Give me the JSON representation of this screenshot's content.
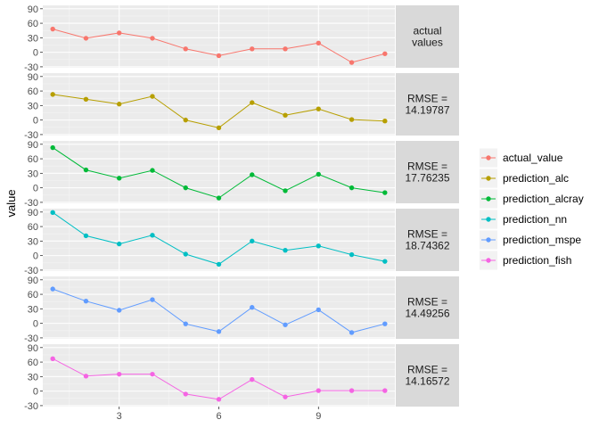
{
  "chart_data": {
    "type": "line",
    "ylabel": "value",
    "xlabel": "",
    "x": [
      1,
      2,
      3,
      4,
      5,
      6,
      7,
      8,
      9,
      10,
      11
    ],
    "xlim": [
      0.7,
      11.3
    ],
    "x_ticks": [
      3,
      6,
      9
    ],
    "ylim": [
      -32,
      97
    ],
    "y_ticks": [
      -30,
      0,
      30,
      60,
      90
    ],
    "grid": true,
    "legend_position": "right",
    "series": [
      {
        "name": "actual_value",
        "color": "#F8766D",
        "strip": [
          "actual",
          "values"
        ],
        "values": [
          48,
          29,
          40,
          29,
          7,
          -7,
          7,
          7,
          19,
          -21,
          -3
        ]
      },
      {
        "name": "prediction_alc",
        "color": "#B79F00",
        "strip": [
          "RMSE =",
          "14.19787"
        ],
        "values": [
          53,
          43,
          33,
          49,
          0,
          -16,
          36,
          10,
          23,
          1,
          -2
        ]
      },
      {
        "name": "prediction_alcray",
        "color": "#00BA38",
        "strip": [
          "RMSE =",
          "17.76235"
        ],
        "values": [
          83,
          37,
          20,
          36,
          0,
          -21,
          27,
          -6,
          28,
          0,
          -10
        ]
      },
      {
        "name": "prediction_nn",
        "color": "#00BFC4",
        "strip": [
          "RMSE =",
          "18.74362"
        ],
        "values": [
          89,
          41,
          24,
          42,
          3,
          -18,
          30,
          11,
          20,
          2,
          -12
        ]
      },
      {
        "name": "prediction_mspe",
        "color": "#619CFF",
        "strip": [
          "RMSE =",
          "14.49256"
        ],
        "values": [
          71,
          46,
          27,
          49,
          -1,
          -17,
          33,
          -3,
          28,
          -19,
          -1
        ]
      },
      {
        "name": "prediction_fish",
        "color": "#F564E3",
        "strip": [
          "RMSE =",
          "14.16572"
        ],
        "values": [
          67,
          31,
          35,
          35,
          -6,
          -17,
          24,
          -12,
          1,
          1,
          1
        ]
      }
    ]
  }
}
